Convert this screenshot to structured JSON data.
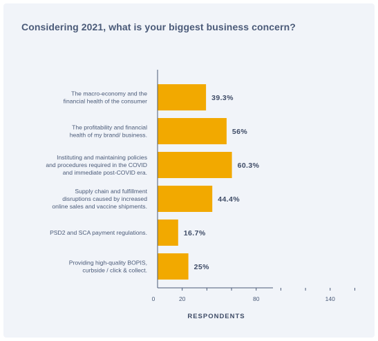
{
  "chart_data": {
    "type": "bar",
    "orientation": "horizontal",
    "title": "Considering 2021, what is your biggest business concern?",
    "xlabel": "RESPONDENTS",
    "ylabel": "",
    "categories": [
      [
        "The macro-economy and the",
        "financial health of the consumer"
      ],
      [
        "The profitability and financial",
        "health of my brand/ business."
      ],
      [
        "Instituting and maintaining policies",
        "and procedures required in the COVID",
        "and immediate post-COVID era."
      ],
      [
        "Supply chain and fulfillment",
        "disruptions caused by increased",
        "online sales and vaccine shipments."
      ],
      [
        "PSD2 and SCA payment regulations."
      ],
      [
        "Providing high-quality BOPIS,",
        "curbside / click & collect."
      ]
    ],
    "values": [
      39.3,
      56,
      60.3,
      44.4,
      16.7,
      25
    ],
    "value_labels": [
      "39.3%",
      "56%",
      "60.3%",
      "44.4%",
      "16.7%",
      "25%"
    ],
    "xlim": [
      0,
      200
    ],
    "xticks": [
      0,
      20,
      80,
      140,
      200
    ],
    "bar_color": "#f2a900",
    "axis_color": "#4a5a78",
    "grid": false,
    "legend": "none"
  }
}
